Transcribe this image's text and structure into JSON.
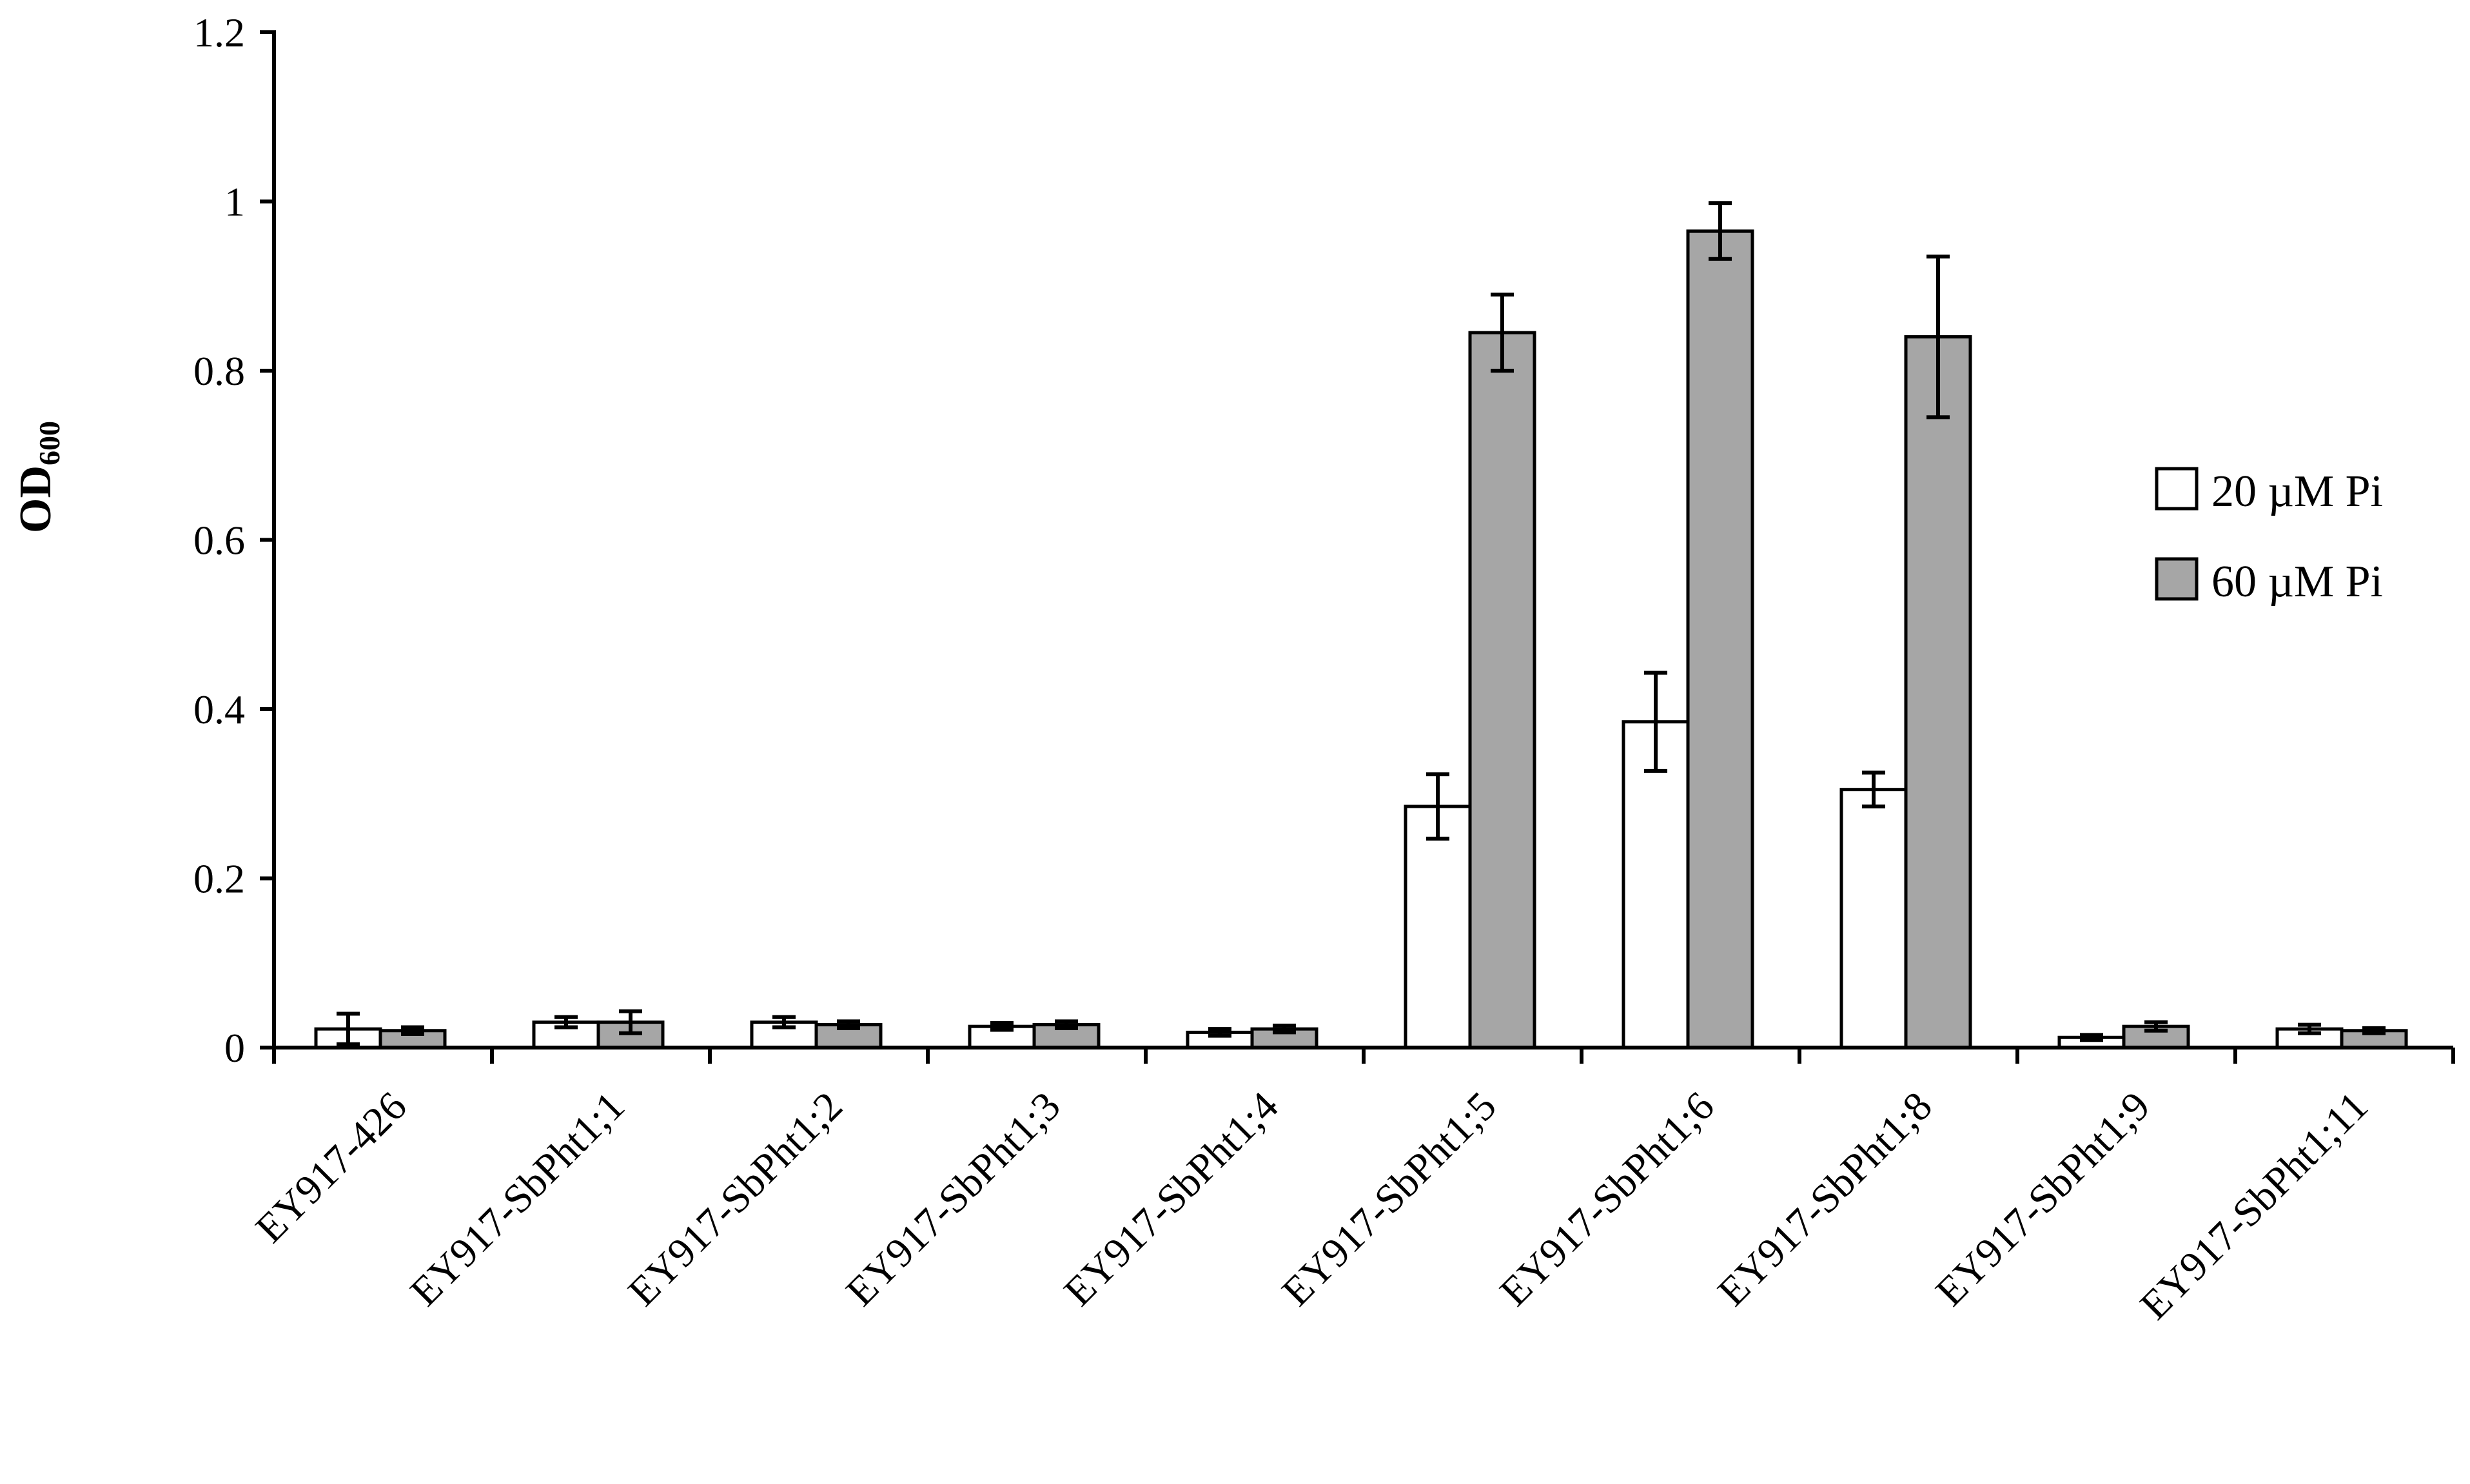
{
  "chart_data": {
    "type": "bar",
    "ylabel": "OD",
    "ylabel_subscript": "600",
    "ylim": [
      0,
      1.2
    ],
    "yticks": [
      {
        "value": 0,
        "label": "0"
      },
      {
        "value": 0.2,
        "label": "0.2"
      },
      {
        "value": 0.4,
        "label": "0.4"
      },
      {
        "value": 0.6,
        "label": "0.6"
      },
      {
        "value": 0.8,
        "label": "0.8"
      },
      {
        "value": 1.0,
        "label": "1"
      },
      {
        "value": 1.2,
        "label": "1.2"
      }
    ],
    "categories": [
      "EY917-426",
      "EY917-SbPht1;1",
      "EY917-SbPht1;2",
      "EY917-SbPht1;3",
      "EY917-SbPht1;4",
      "EY917-SbPht1;5",
      "EY917-SbPht1;6",
      "EY917-SbPht1;8",
      "EY917-SbPht1;9",
      "EY917-SbPht1;11"
    ],
    "series": [
      {
        "name": "20 µM Pi",
        "color": "#ffffff",
        "values": [
          0.022,
          0.03,
          0.03,
          0.025,
          0.018,
          0.285,
          0.385,
          0.305,
          0.012,
          0.022
        ],
        "errors": [
          0.018,
          0.006,
          0.006,
          0.004,
          0.004,
          0.038,
          0.058,
          0.02,
          0.003,
          0.005
        ]
      },
      {
        "name": "60 µM Pi",
        "color": "#a6a6a6",
        "values": [
          0.02,
          0.03,
          0.027,
          0.027,
          0.022,
          0.845,
          0.965,
          0.84,
          0.025,
          0.02
        ],
        "errors": [
          0.004,
          0.013,
          0.004,
          0.004,
          0.004,
          0.045,
          0.033,
          0.095,
          0.005,
          0.003
        ]
      }
    ],
    "grid": false,
    "legend_position": "right"
  }
}
